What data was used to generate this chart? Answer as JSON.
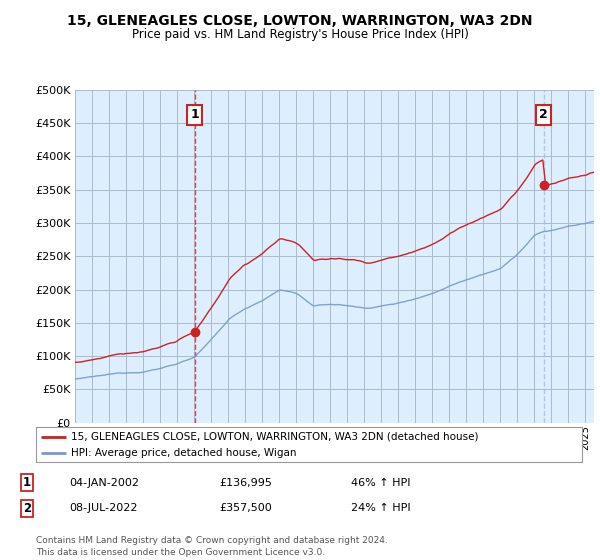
{
  "title": "15, GLENEAGLES CLOSE, LOWTON, WARRINGTON, WA3 2DN",
  "subtitle": "Price paid vs. HM Land Registry's House Price Index (HPI)",
  "legend_line1": "15, GLENEAGLES CLOSE, LOWTON, WARRINGTON, WA3 2DN (detached house)",
  "legend_line2": "HPI: Average price, detached house, Wigan",
  "annotation1_date": "04-JAN-2002",
  "annotation1_price": "£136,995",
  "annotation1_change": "46% ↑ HPI",
  "annotation2_date": "08-JUL-2022",
  "annotation2_price": "£357,500",
  "annotation2_change": "24% ↑ HPI",
  "footer": "Contains HM Land Registry data © Crown copyright and database right 2024.\nThis data is licensed under the Open Government Licence v3.0.",
  "sale1_year": 2002.04,
  "sale1_price": 136995,
  "sale2_year": 2022.54,
  "sale2_price": 357500,
  "hpi_color": "#7799cc",
  "price_color": "#cc2222",
  "sale1_vline_color": "#cc2222",
  "sale2_vline_color": "#aabbdd",
  "chart_bg": "#ddeeff",
  "ylim_max": 500000,
  "ylim_min": 0,
  "xlim_min": 1995,
  "xlim_max": 2025.5,
  "background_color": "#ffffff",
  "grid_color": "#aabbcc"
}
